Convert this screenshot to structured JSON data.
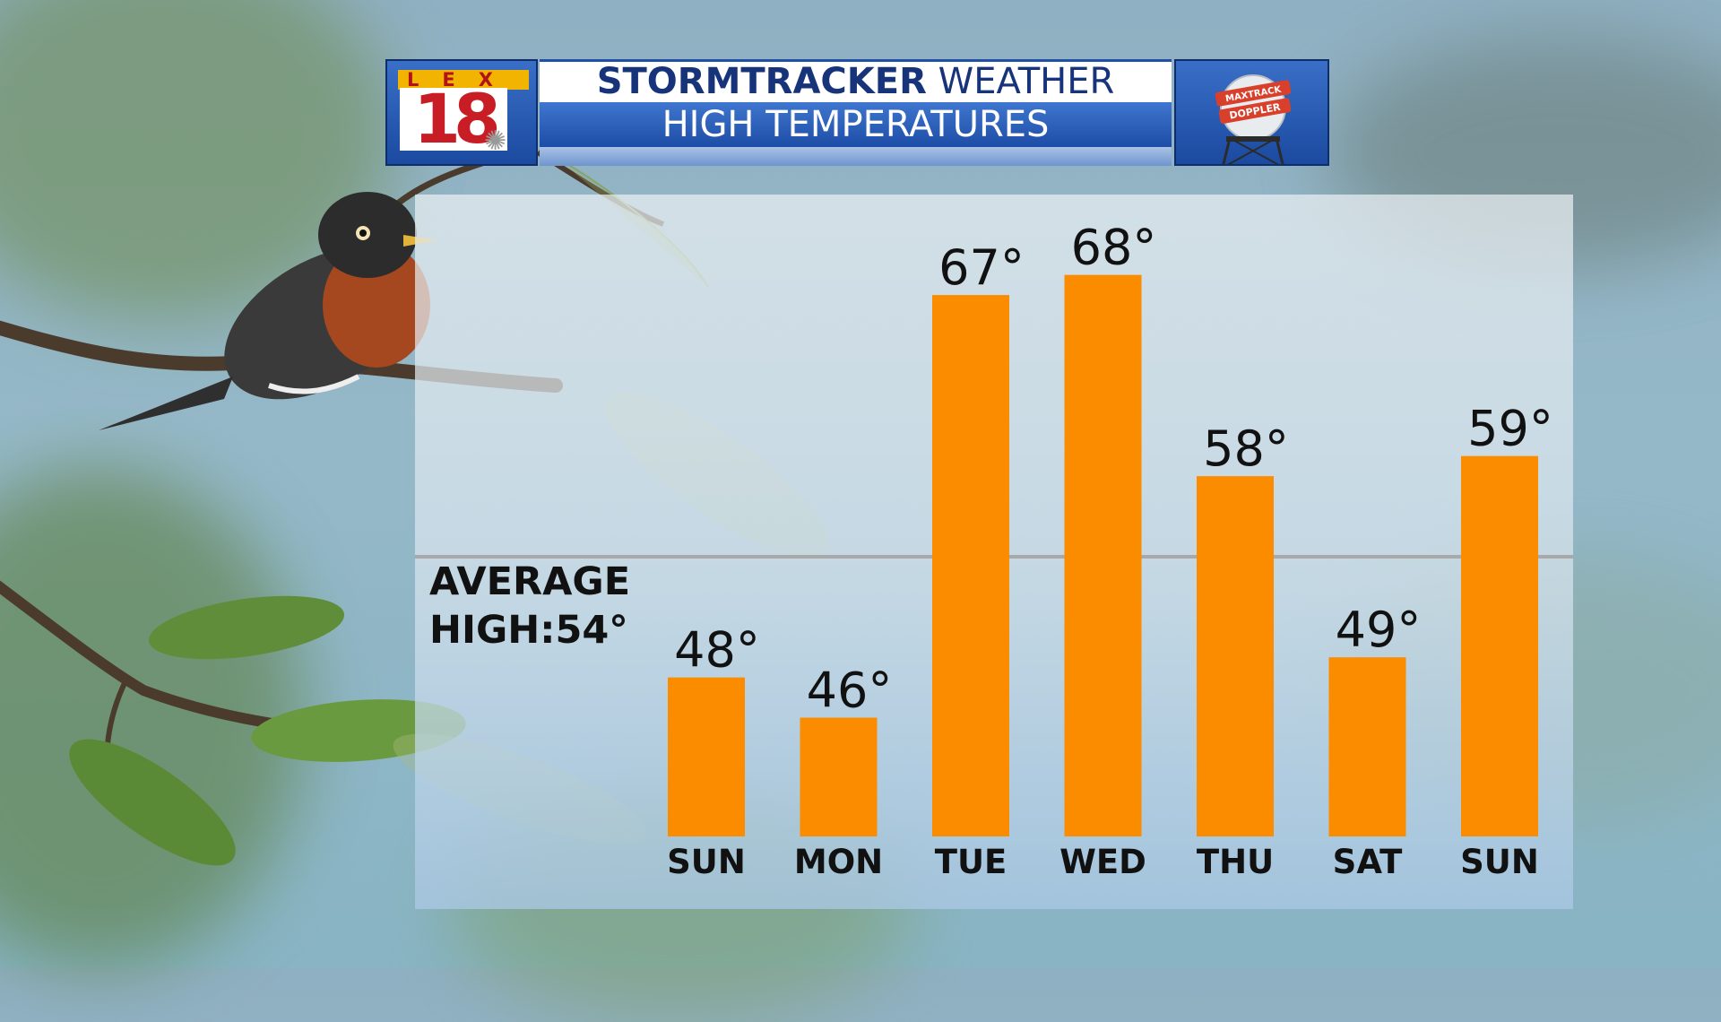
{
  "header": {
    "station_logo_top": "LEX",
    "station_logo_number": "18",
    "title_bold": "STORMTRACKER",
    "title_rest": "WEATHER",
    "subtitle": "HIGH TEMPERATURES",
    "radar_badge_line1": "MAXTRACK",
    "radar_badge_line2": "DOPPLER"
  },
  "average": {
    "line1": "AVERAGE",
    "line2": "HIGH:54°"
  },
  "colors": {
    "bar": "#fb8c00",
    "average_line": "#a9a9a9",
    "header_blue": "#1d4da6",
    "header_text_dark": "#17347a"
  },
  "chart_data": {
    "type": "bar",
    "title": "HIGH TEMPERATURES",
    "categories": [
      "SUN",
      "MON",
      "TUE",
      "WED",
      "THU",
      "SAT",
      "SUN"
    ],
    "values": [
      48,
      46,
      67,
      68,
      58,
      49,
      59
    ],
    "value_labels": [
      "48°",
      "46°",
      "67°",
      "68°",
      "58°",
      "49°",
      "59°"
    ],
    "average_high": 54,
    "ylim": [
      40,
      72
    ],
    "grid": false,
    "legend": "none"
  }
}
